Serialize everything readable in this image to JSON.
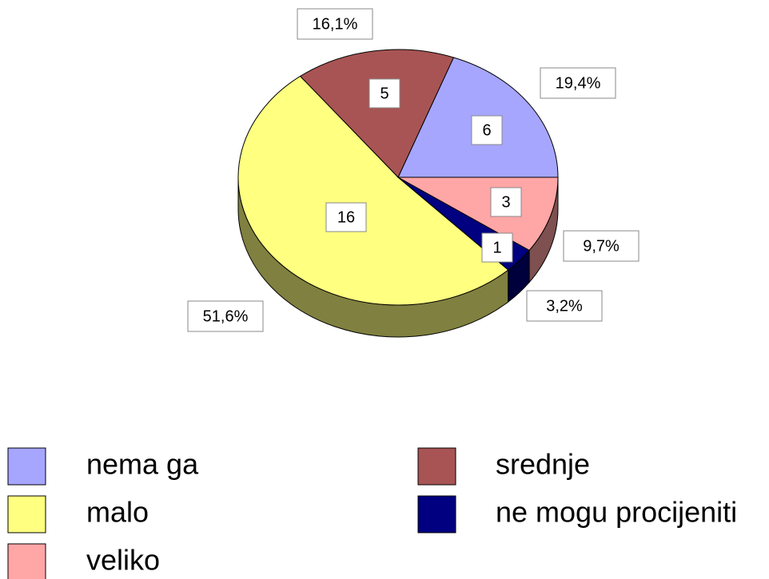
{
  "chart_data": {
    "type": "pie",
    "categories": [
      "nema ga",
      "srednje",
      "malo",
      "ne mogu procijeniti",
      "veliko"
    ],
    "values": [
      6,
      5,
      16,
      1,
      3
    ],
    "percent_values": [
      19.4,
      16.1,
      51.6,
      3.2,
      9.7
    ],
    "percent_labels": [
      "19,4%",
      "16,1%",
      "51,6%",
      "3,2%",
      "9,7%"
    ],
    "colors": [
      "#a6a6ff",
      "#a85454",
      "#ffff80",
      "#000080",
      "#ffa6a6"
    ],
    "side_colors": [
      "#5a5a8c",
      "#6e3636",
      "#808040",
      "#00003c",
      "#7e5050"
    ],
    "legend": "bottom"
  }
}
